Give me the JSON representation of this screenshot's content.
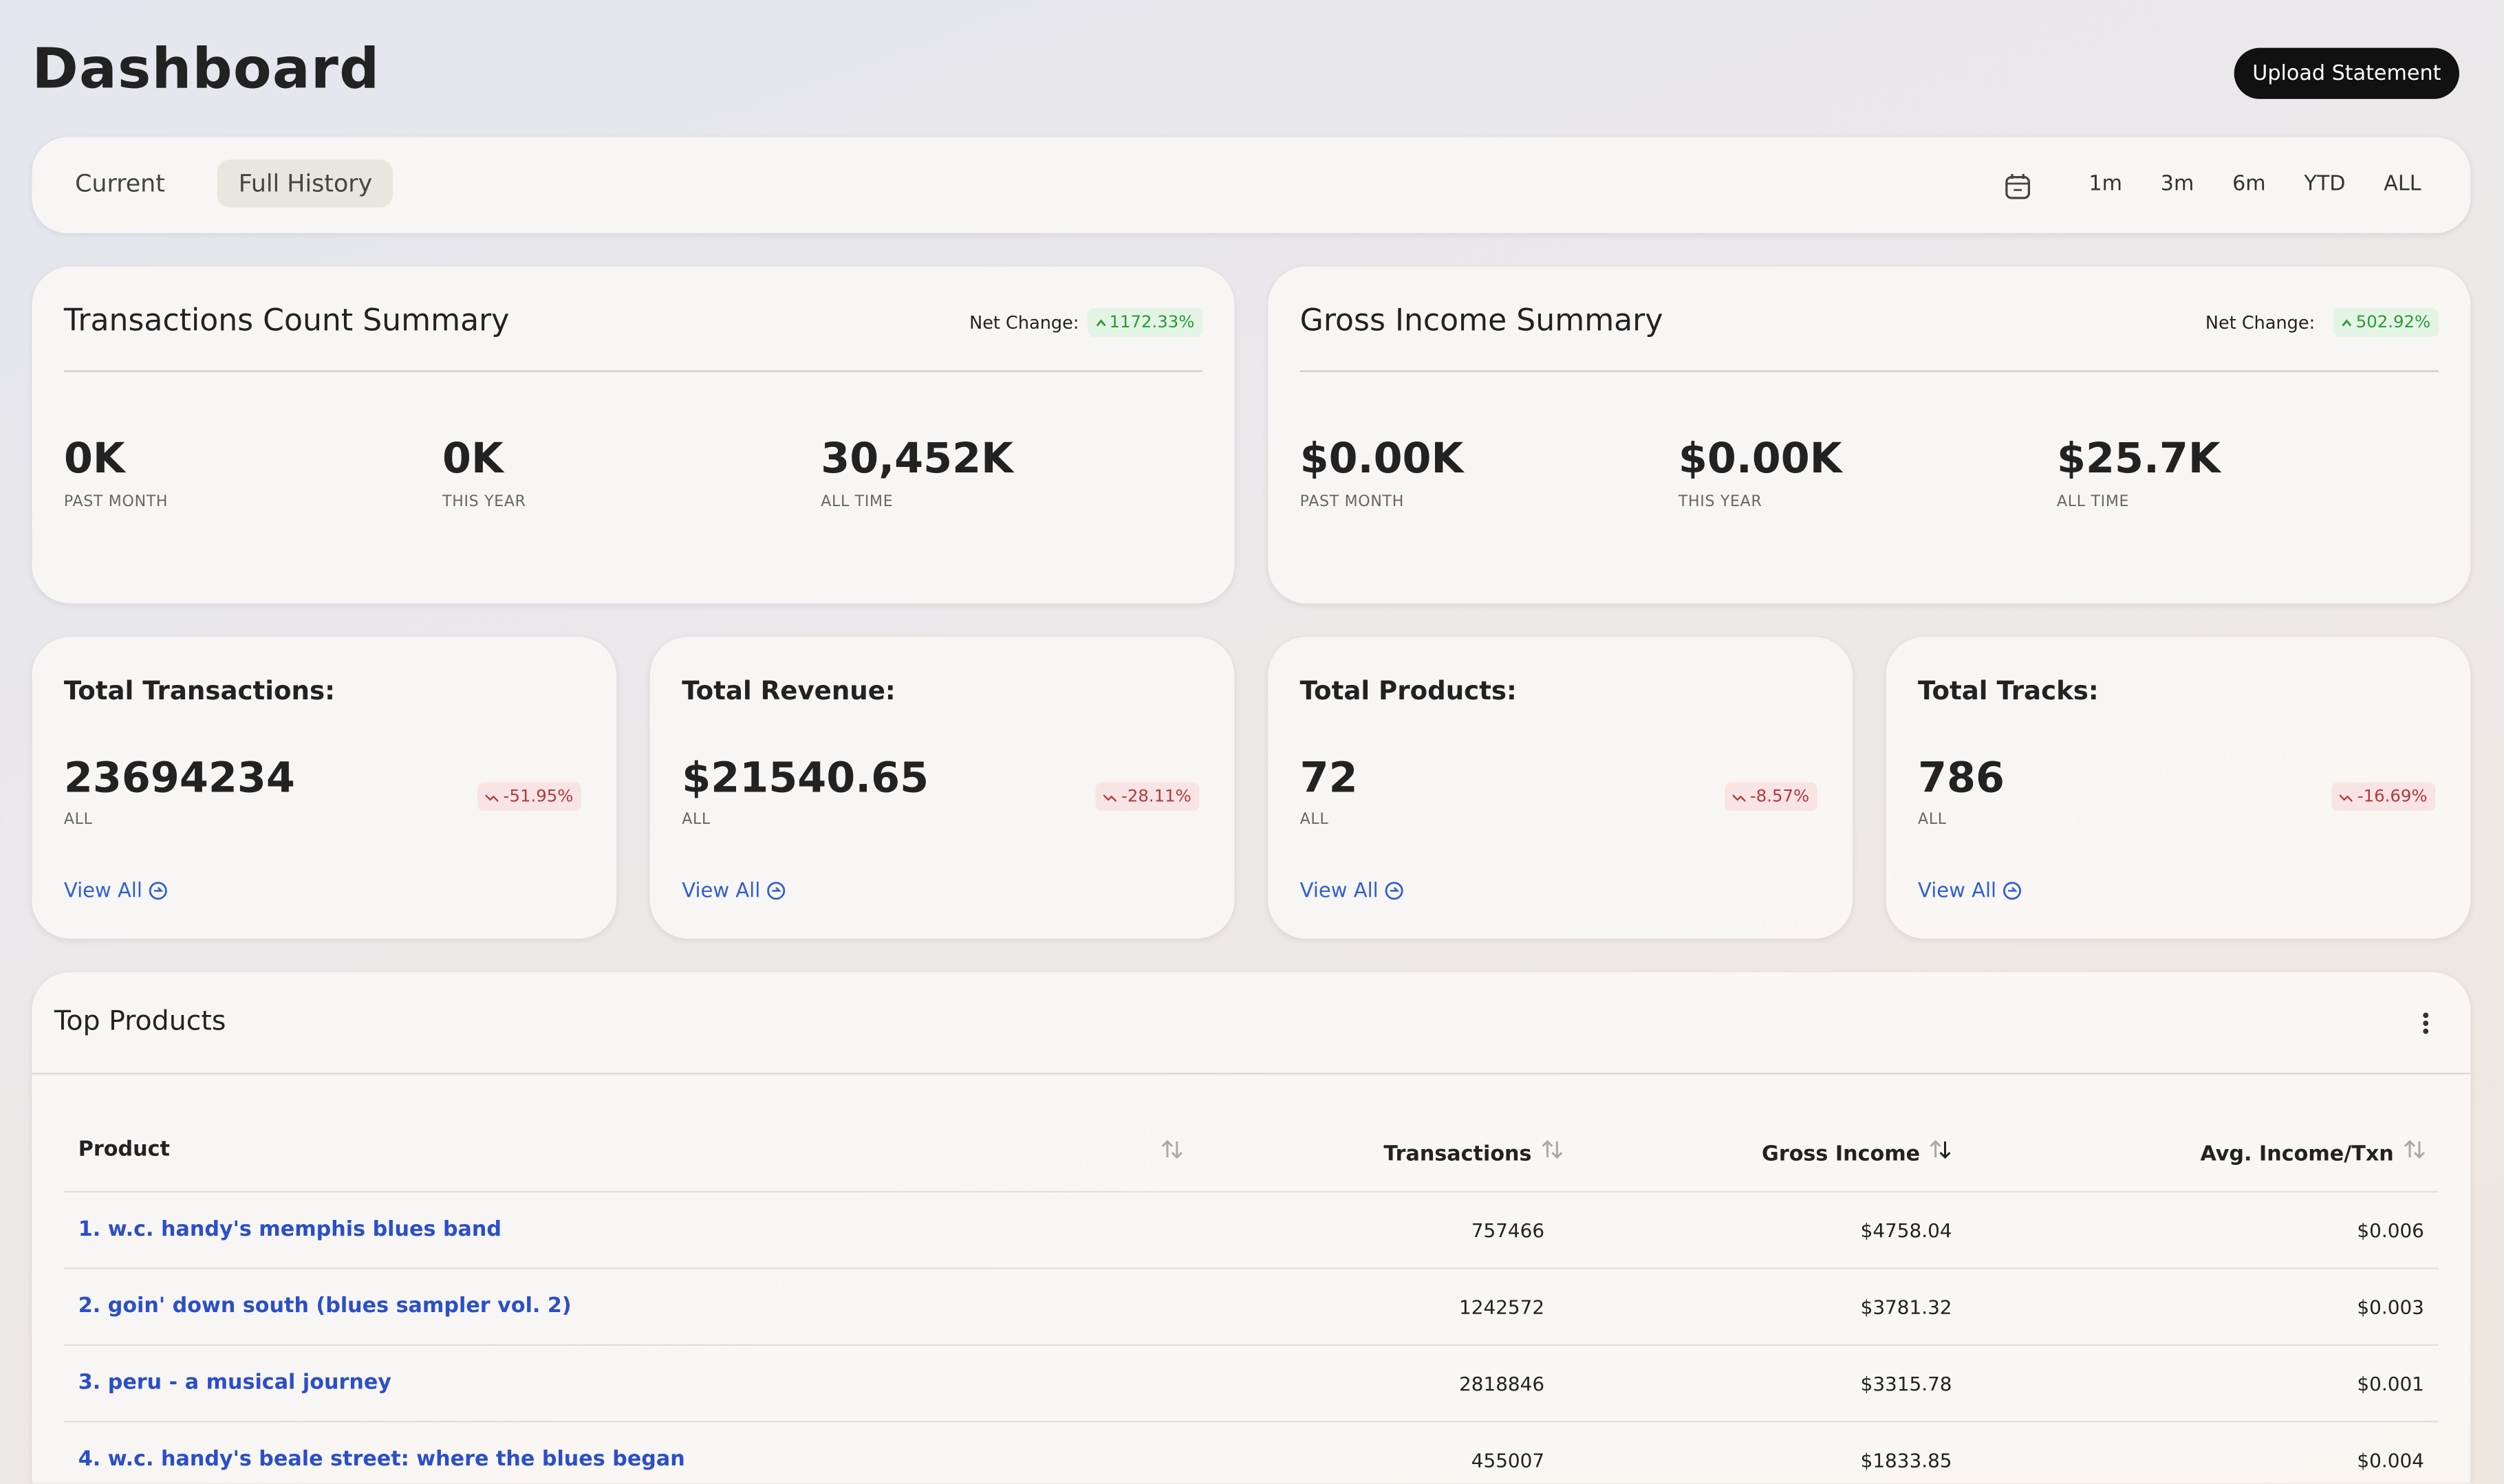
{
  "header": {
    "title": "Dashboard",
    "button": "Upload Statement"
  },
  "filters": {
    "tabs": [
      "Current",
      "Full History"
    ],
    "ranges": [
      "1m",
      "3m",
      "6m",
      "YTD",
      "ALL"
    ]
  },
  "summaries": [
    {
      "title": "Transactions Count Summary",
      "net_change_label": "Net Change:",
      "net_change": "1172.33%",
      "stats": [
        {
          "value": "0K",
          "label": "PAST MONTH"
        },
        {
          "value": "0K",
          "label": "THIS YEAR"
        },
        {
          "value": "30,452K",
          "label": "ALL TIME"
        }
      ]
    },
    {
      "title": "Gross Income Summary",
      "net_change_label": "Net Change:",
      "net_change": "502.92%",
      "stats": [
        {
          "value": "$0.00K",
          "label": "PAST MONTH"
        },
        {
          "value": "$0.00K",
          "label": "THIS YEAR"
        },
        {
          "value": "$25.7K",
          "label": "ALL TIME"
        }
      ]
    }
  ],
  "cards": [
    {
      "title": "Total Transactions:",
      "value": "23694234",
      "label": "ALL",
      "change": "-51.95%",
      "link": "View All"
    },
    {
      "title": "Total Revenue:",
      "value": "$21540.65",
      "label": "ALL",
      "change": "-28.11%",
      "link": "View All"
    },
    {
      "title": "Total Products:",
      "value": "72",
      "label": "ALL",
      "change": "-8.57%",
      "link": "View All"
    },
    {
      "title": "Total Tracks:",
      "value": "786",
      "label": "ALL",
      "change": "-16.69%",
      "link": "View All"
    }
  ],
  "table": {
    "title": "Top Products",
    "columns": [
      "Product",
      "Transactions",
      "Gross Income",
      "Avg. Income/Txn"
    ],
    "rows": [
      [
        "1. w.c. handy's memphis blues band",
        "757466",
        "$4758.04",
        "$0.006"
      ],
      [
        "2. goin' down south (blues sampler vol. 2)",
        "1242572",
        "$3781.32",
        "$0.003"
      ],
      [
        "3. peru - a musical journey",
        "2818846",
        "$3315.78",
        "$0.001"
      ],
      [
        "4. w.c. handy's beale street: where the blues began",
        "455007",
        "$1833.85",
        "$0.004"
      ]
    ]
  }
}
